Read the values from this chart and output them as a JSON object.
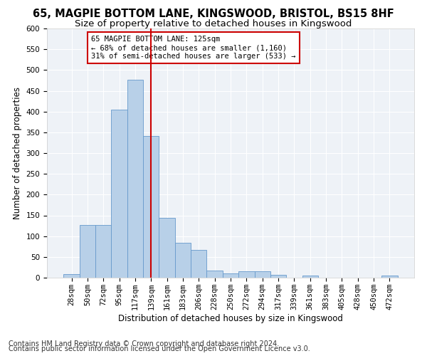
{
  "title1": "65, MAGPIE BOTTOM LANE, KINGSWOOD, BRISTOL, BS15 8HF",
  "title2": "Size of property relative to detached houses in Kingswood",
  "xlabel": "Distribution of detached houses by size in Kingswood",
  "ylabel": "Number of detached properties",
  "categories": [
    "28sqm",
    "50sqm",
    "72sqm",
    "95sqm",
    "117sqm",
    "139sqm",
    "161sqm",
    "183sqm",
    "206sqm",
    "228sqm",
    "250sqm",
    "272sqm",
    "294sqm",
    "317sqm",
    "339sqm",
    "361sqm",
    "383sqm",
    "405sqm",
    "428sqm",
    "450sqm",
    "472sqm"
  ],
  "values": [
    8,
    127,
    127,
    405,
    477,
    341,
    144,
    84,
    67,
    18,
    11,
    15,
    15,
    7,
    0,
    5,
    0,
    0,
    0,
    0,
    5
  ],
  "bar_color": "#b8d0e8",
  "bar_edge_color": "#6699cc",
  "vline_x": 5.0,
  "vline_color": "#cc0000",
  "annotation_line1": "65 MAGPIE BOTTOM LANE: 125sqm",
  "annotation_line2": "← 68% of detached houses are smaller (1,160)",
  "annotation_line3": "31% of semi-detached houses are larger (533) →",
  "annotation_box_color": "#cc0000",
  "ylim": [
    0,
    600
  ],
  "yticks": [
    0,
    50,
    100,
    150,
    200,
    250,
    300,
    350,
    400,
    450,
    500,
    550,
    600
  ],
  "footer1": "Contains HM Land Registry data © Crown copyright and database right 2024.",
  "footer2": "Contains public sector information licensed under the Open Government Licence v3.0.",
  "background_color": "#eef2f7",
  "grid_color": "#ffffff",
  "title1_fontsize": 10.5,
  "title2_fontsize": 9.5,
  "xlabel_fontsize": 8.5,
  "ylabel_fontsize": 8.5,
  "tick_fontsize": 7.5,
  "annot_fontsize": 7.5,
  "footer_fontsize": 7.0
}
